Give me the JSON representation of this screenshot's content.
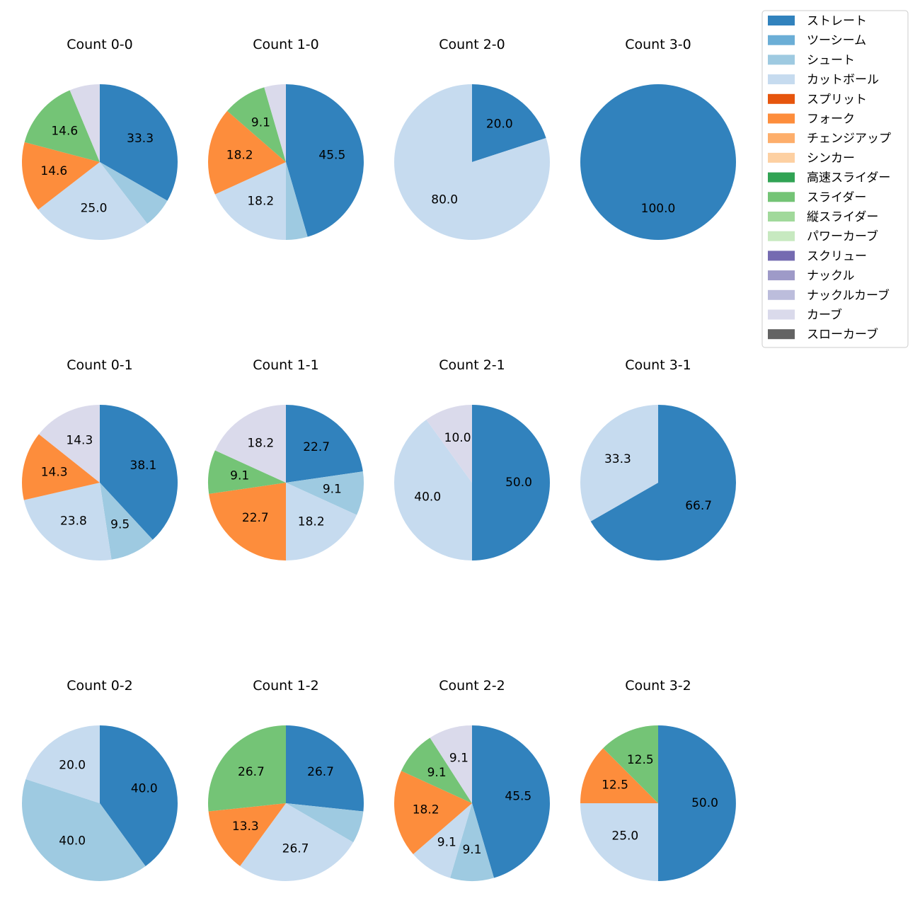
{
  "legend": {
    "items": [
      {
        "name": "ストレート",
        "color": "#3182bd"
      },
      {
        "name": "ツーシーム",
        "color": "#6baed6"
      },
      {
        "name": "シュート",
        "color": "#9ecae1"
      },
      {
        "name": "カットボール",
        "color": "#c6dbef"
      },
      {
        "name": "スプリット",
        "color": "#e6550d"
      },
      {
        "name": "フォーク",
        "color": "#fd8d3c"
      },
      {
        "name": "チェンジアップ",
        "color": "#fdae6b"
      },
      {
        "name": "シンカー",
        "color": "#fdd0a2"
      },
      {
        "name": "高速スライダー",
        "color": "#31a354"
      },
      {
        "name": "スライダー",
        "color": "#74c476"
      },
      {
        "name": "縦スライダー",
        "color": "#a1d99b"
      },
      {
        "name": "パワーカーブ",
        "color": "#c7e9c0"
      },
      {
        "name": "スクリュー",
        "color": "#756bb1"
      },
      {
        "name": "ナックル",
        "color": "#9e9ac8"
      },
      {
        "name": "ナックルカーブ",
        "color": "#bcbddc"
      },
      {
        "name": "カーブ",
        "color": "#dadaeb"
      },
      {
        "name": "スローカーブ",
        "color": "#636363"
      }
    ]
  },
  "chart_data": [
    {
      "type": "pie",
      "title": "Count 0-0",
      "slices": [
        {
          "category": "ストレート",
          "value": 33.3,
          "label": "33.3"
        },
        {
          "category": "シュート",
          "value": 6.3,
          "label": ""
        },
        {
          "category": "カットボール",
          "value": 25.0,
          "label": "25.0"
        },
        {
          "category": "フォーク",
          "value": 14.6,
          "label": "14.6"
        },
        {
          "category": "スライダー",
          "value": 14.6,
          "label": "14.6"
        },
        {
          "category": "カーブ",
          "value": 6.3,
          "label": ""
        }
      ]
    },
    {
      "type": "pie",
      "title": "Count 1-0",
      "slices": [
        {
          "category": "ストレート",
          "value": 45.5,
          "label": "45.5"
        },
        {
          "category": "シュート",
          "value": 4.5,
          "label": ""
        },
        {
          "category": "カットボール",
          "value": 18.2,
          "label": "18.2"
        },
        {
          "category": "フォーク",
          "value": 18.2,
          "label": "18.2"
        },
        {
          "category": "スライダー",
          "value": 9.1,
          "label": "9.1"
        },
        {
          "category": "カーブ",
          "value": 4.5,
          "label": ""
        }
      ]
    },
    {
      "type": "pie",
      "title": "Count 2-0",
      "slices": [
        {
          "category": "ストレート",
          "value": 20.0,
          "label": "20.0"
        },
        {
          "category": "カットボール",
          "value": 80.0,
          "label": "80.0"
        }
      ]
    },
    {
      "type": "pie",
      "title": "Count 3-0",
      "slices": [
        {
          "category": "ストレート",
          "value": 100.0,
          "label": "100.0"
        }
      ]
    },
    {
      "type": "pie",
      "title": "Count 0-1",
      "slices": [
        {
          "category": "ストレート",
          "value": 38.1,
          "label": "38.1"
        },
        {
          "category": "シュート",
          "value": 9.5,
          "label": "9.5"
        },
        {
          "category": "カットボール",
          "value": 23.8,
          "label": "23.8"
        },
        {
          "category": "フォーク",
          "value": 14.3,
          "label": "14.3"
        },
        {
          "category": "カーブ",
          "value": 14.3,
          "label": "14.3"
        }
      ]
    },
    {
      "type": "pie",
      "title": "Count 1-1",
      "slices": [
        {
          "category": "ストレート",
          "value": 22.7,
          "label": "22.7"
        },
        {
          "category": "シュート",
          "value": 9.1,
          "label": "9.1"
        },
        {
          "category": "カットボール",
          "value": 18.2,
          "label": "18.2"
        },
        {
          "category": "フォーク",
          "value": 22.7,
          "label": "22.7"
        },
        {
          "category": "スライダー",
          "value": 9.1,
          "label": "9.1"
        },
        {
          "category": "カーブ",
          "value": 18.2,
          "label": "18.2"
        }
      ]
    },
    {
      "type": "pie",
      "title": "Count 2-1",
      "slices": [
        {
          "category": "ストレート",
          "value": 50.0,
          "label": "50.0"
        },
        {
          "category": "カットボール",
          "value": 40.0,
          "label": "40.0"
        },
        {
          "category": "カーブ",
          "value": 10.0,
          "label": "10.0"
        }
      ]
    },
    {
      "type": "pie",
      "title": "Count 3-1",
      "slices": [
        {
          "category": "ストレート",
          "value": 66.7,
          "label": "66.7"
        },
        {
          "category": "カットボール",
          "value": 33.3,
          "label": "33.3"
        }
      ]
    },
    {
      "type": "pie",
      "title": "Count 0-2",
      "slices": [
        {
          "category": "ストレート",
          "value": 40.0,
          "label": "40.0"
        },
        {
          "category": "シュート",
          "value": 40.0,
          "label": "40.0"
        },
        {
          "category": "カットボール",
          "value": 20.0,
          "label": "20.0"
        }
      ]
    },
    {
      "type": "pie",
      "title": "Count 1-2",
      "slices": [
        {
          "category": "ストレート",
          "value": 26.7,
          "label": "26.7"
        },
        {
          "category": "シュート",
          "value": 6.7,
          "label": ""
        },
        {
          "category": "カットボール",
          "value": 26.7,
          "label": "26.7"
        },
        {
          "category": "フォーク",
          "value": 13.3,
          "label": "13.3"
        },
        {
          "category": "スライダー",
          "value": 26.7,
          "label": "26.7"
        }
      ]
    },
    {
      "type": "pie",
      "title": "Count 2-2",
      "slices": [
        {
          "category": "ストレート",
          "value": 45.5,
          "label": "45.5"
        },
        {
          "category": "シュート",
          "value": 9.1,
          "label": "9.1"
        },
        {
          "category": "カットボール",
          "value": 9.1,
          "label": "9.1"
        },
        {
          "category": "フォーク",
          "value": 18.2,
          "label": "18.2"
        },
        {
          "category": "スライダー",
          "value": 9.1,
          "label": "9.1"
        },
        {
          "category": "カーブ",
          "value": 9.1,
          "label": "9.1"
        }
      ]
    },
    {
      "type": "pie",
      "title": "Count 3-2",
      "slices": [
        {
          "category": "ストレート",
          "value": 50.0,
          "label": "50.0"
        },
        {
          "category": "カットボール",
          "value": 25.0,
          "label": "25.0"
        },
        {
          "category": "フォーク",
          "value": 12.5,
          "label": "12.5"
        },
        {
          "category": "スライダー",
          "value": 12.5,
          "label": "12.5"
        }
      ]
    }
  ]
}
